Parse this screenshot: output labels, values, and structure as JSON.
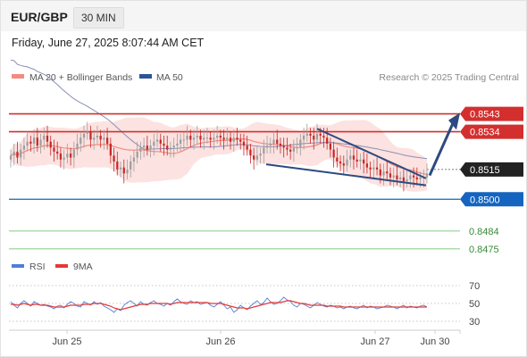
{
  "header": {
    "symbol": "EUR/GBP",
    "timeframe": "30 MIN"
  },
  "datetime": "Friday, June 27, 2025 8:07:44 AM CET",
  "legend": {
    "ma20": "MA 20 + Bollinger Bands",
    "ma50": "MA 50",
    "research": "Research © 2025 Trading Central",
    "rsi": "RSI",
    "ma9": "9MA"
  },
  "colors": {
    "ma20": "#f28b82",
    "ma50": "#2c5597",
    "bollinger_fill": "#fbd8d6",
    "up": "#9e9e9e",
    "down": "#c62828",
    "resistance": "#d32f2f",
    "support": "#1565c0",
    "target": "#5cb85c",
    "rsi": "#4f7fd6",
    "rsi_ma": "#e53935"
  },
  "chart_data": [
    {
      "type": "candlestick",
      "title": "EUR/GBP",
      "x_labels": [
        "Jun 25",
        "Jun 26",
        "Jun 27",
        "Jun 30"
      ],
      "ylim": [
        0.847,
        0.855
      ],
      "levels": [
        {
          "name": "resistance-2",
          "value": 0.8543,
          "label": "0.8543",
          "style": "red"
        },
        {
          "name": "resistance-1",
          "value": 0.8534,
          "label": "0.8534",
          "style": "red"
        },
        {
          "name": "current",
          "value": 0.8515,
          "label": "0.8515",
          "style": "current"
        },
        {
          "name": "pivot",
          "value": 0.85,
          "label": "0.8500",
          "style": "blue"
        },
        {
          "name": "support-1",
          "value": 0.8484,
          "label": "0.8484",
          "style": "green"
        },
        {
          "name": "support-2",
          "value": 0.8475,
          "label": "0.8475",
          "style": "green"
        }
      ],
      "closes": [
        0.8522,
        0.8524,
        0.8521,
        0.8525,
        0.8527,
        0.8529,
        0.8528,
        0.8531,
        0.8527,
        0.853,
        0.8532,
        0.8529,
        0.8526,
        0.8524,
        0.8523,
        0.852,
        0.8521,
        0.8523,
        0.8521,
        0.8525,
        0.8528,
        0.8531,
        0.8533,
        0.8534,
        0.853,
        0.8531,
        0.8532,
        0.853,
        0.8531,
        0.8528,
        0.8522,
        0.8519,
        0.8515,
        0.8516,
        0.8513,
        0.8515,
        0.8519,
        0.8521,
        0.8524,
        0.8526,
        0.8527,
        0.8525,
        0.8527,
        0.8529,
        0.853,
        0.8528,
        0.8527,
        0.8525,
        0.8526,
        0.8527,
        0.8528,
        0.853,
        0.853,
        0.8532,
        0.853,
        0.8531,
        0.8532,
        0.853,
        0.8531,
        0.8531,
        0.853,
        0.8531,
        0.8532,
        0.8531,
        0.853,
        0.8531,
        0.8529,
        0.8531,
        0.853,
        0.8529,
        0.8527,
        0.8525,
        0.8522,
        0.852,
        0.8522,
        0.8523,
        0.8526,
        0.8527,
        0.8528,
        0.853,
        0.8528,
        0.8527,
        0.8526,
        0.8525,
        0.8524,
        0.8526,
        0.8526,
        0.853,
        0.8532,
        0.8533,
        0.8532,
        0.853,
        0.8533,
        0.8532,
        0.8531,
        0.8528,
        0.8525,
        0.8521,
        0.8519,
        0.8518,
        0.8517,
        0.852,
        0.8522,
        0.852,
        0.8519,
        0.852,
        0.8518,
        0.8516,
        0.8515,
        0.8516,
        0.8515,
        0.8512,
        0.8514,
        0.8513,
        0.8511,
        0.8512,
        0.851,
        0.8511,
        0.8509,
        0.851,
        0.8512,
        0.8511,
        0.851,
        0.8511,
        0.8511,
        0.8513
      ]
    },
    {
      "type": "line",
      "title": "RSI",
      "ylim": [
        20,
        80
      ],
      "ticks": [
        70,
        50,
        30
      ],
      "series": [
        {
          "name": "RSI",
          "values": [
            52,
            48,
            45,
            50,
            53,
            50,
            47,
            52,
            50,
            48,
            49,
            47,
            46,
            44,
            47,
            48,
            45,
            49,
            52,
            50,
            47,
            46,
            52,
            50,
            48,
            52,
            49,
            51,
            47,
            45,
            43,
            40,
            44,
            42,
            48,
            51,
            53,
            50,
            47,
            52,
            49,
            48,
            51,
            53,
            50,
            49,
            47,
            50,
            48,
            52,
            55,
            52,
            50,
            49,
            53,
            51,
            52,
            49,
            50,
            51,
            48,
            46,
            49,
            52,
            48,
            44,
            46,
            40,
            43,
            48,
            45,
            43,
            47,
            50,
            53,
            49,
            51,
            56,
            52,
            49,
            50,
            53,
            57,
            54,
            52,
            48,
            46,
            50,
            49,
            47,
            45,
            48,
            51,
            49,
            47,
            46,
            48,
            47,
            45,
            46,
            44,
            46,
            47,
            45,
            44,
            46,
            48,
            45,
            47,
            46,
            44,
            45,
            46,
            48,
            47,
            46,
            44,
            46,
            48,
            45,
            47,
            46,
            45,
            47,
            48,
            46
          ]
        },
        {
          "name": "9MA",
          "values": [
            49,
            49,
            48,
            49,
            50,
            49,
            48,
            49,
            49,
            48,
            48,
            48,
            47,
            46,
            46,
            46,
            46,
            47,
            48,
            48,
            48,
            48,
            49,
            49,
            49,
            50,
            50,
            50,
            49,
            48,
            47,
            45,
            44,
            43,
            44,
            45,
            46,
            47,
            48,
            49,
            49,
            49,
            50,
            50,
            50,
            50,
            50,
            50,
            49,
            50,
            51,
            51,
            51,
            51,
            51,
            51,
            51,
            51,
            51,
            51,
            50,
            50,
            50,
            50,
            49,
            48,
            47,
            46,
            45,
            45,
            45,
            44,
            45,
            46,
            47,
            48,
            49,
            50,
            51,
            51,
            51,
            51,
            52,
            53,
            53,
            52,
            51,
            50,
            50,
            49,
            48,
            48,
            48,
            48,
            48,
            47,
            47,
            47,
            47,
            47,
            46,
            46,
            46,
            46,
            46,
            46,
            46,
            46,
            46,
            46,
            46,
            46,
            46,
            46,
            46,
            46,
            46,
            46,
            46,
            46,
            46,
            46,
            46,
            46,
            46,
            46
          ]
        }
      ]
    }
  ]
}
